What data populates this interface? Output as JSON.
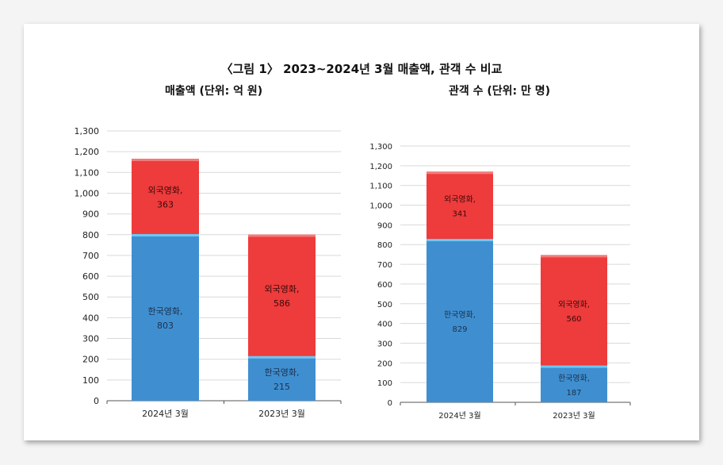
{
  "figure_title": "〈그림 1〉 2023~2024년 3월 매출액, 관객 수 비교",
  "colors": {
    "korean": "#3f8fd0",
    "foreign": "#ee3b3b",
    "korean_top": "#6cc8f5"
  },
  "chart_data": [
    {
      "type": "bar",
      "stacked": true,
      "title": "매출액 (단위: 억 원)",
      "categories": [
        "2024년 3월",
        "2023년 3월"
      ],
      "series": [
        {
          "name": "한국영화",
          "values": [
            803,
            215
          ]
        },
        {
          "name": "외국영화",
          "values": [
            363,
            586
          ]
        }
      ],
      "yticks": [
        "0",
        "100",
        "200",
        "300",
        "400",
        "500",
        "600",
        "700",
        "800",
        "900",
        "1,000",
        "1,100",
        "1,200",
        "1,300"
      ],
      "ylim": [
        0,
        1300
      ],
      "grid": true
    },
    {
      "type": "bar",
      "stacked": true,
      "title": "관객 수 (단위: 만 명)",
      "categories": [
        "2024년 3월",
        "2023년 3월"
      ],
      "series": [
        {
          "name": "한국영화",
          "values": [
            829,
            187
          ]
        },
        {
          "name": "외국영화",
          "values": [
            341,
            560
          ]
        }
      ],
      "yticks": [
        "0",
        "100",
        "200",
        "300",
        "400",
        "500",
        "600",
        "700",
        "800",
        "900",
        "1,000",
        "1,100",
        "1,200",
        "1,300"
      ],
      "ylim": [
        0,
        1300
      ],
      "grid": true
    }
  ]
}
